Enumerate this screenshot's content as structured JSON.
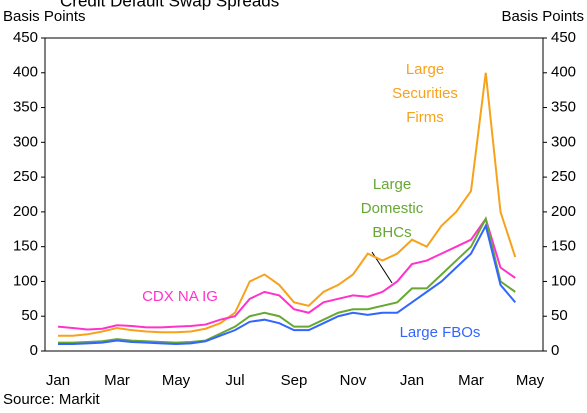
{
  "chart_data": {
    "type": "line",
    "title": "Credit Default Swap Spreads",
    "y_label": "Basis Points",
    "y2_label": "Basis Points",
    "source": "Source: Markit",
    "categories": [
      "Jan",
      null,
      null,
      null,
      "Mar",
      null,
      null,
      null,
      "May",
      null,
      null,
      null,
      "Jul",
      null,
      null,
      null,
      "Sep",
      null,
      null,
      null,
      "Nov",
      null,
      null,
      null,
      "Jan",
      null,
      null,
      null,
      "Mar",
      null,
      null,
      null,
      "May"
    ],
    "series": [
      {
        "name": "Large Securities Firms",
        "color": "#f7a21b",
        "values": [
          22,
          22,
          24,
          28,
          33,
          30,
          28,
          27,
          27,
          28,
          32,
          40,
          55,
          100,
          110,
          95,
          70,
          65,
          85,
          95,
          110,
          140,
          130,
          140,
          160,
          150,
          180,
          200,
          230,
          400,
          200,
          135,
          null
        ]
      },
      {
        "name": "CDX NA IG",
        "color": "#ff33cc",
        "values": [
          35,
          33,
          31,
          32,
          37,
          36,
          34,
          34,
          35,
          36,
          38,
          45,
          50,
          75,
          85,
          80,
          60,
          55,
          70,
          75,
          80,
          78,
          85,
          100,
          125,
          130,
          140,
          150,
          160,
          190,
          120,
          105,
          null
        ]
      },
      {
        "name": "Large Domestic BHCs",
        "color": "#66a832",
        "values": [
          12,
          12,
          13,
          14,
          17,
          15,
          14,
          13,
          12,
          13,
          15,
          25,
          35,
          50,
          55,
          50,
          35,
          35,
          45,
          55,
          60,
          60,
          65,
          70,
          90,
          90,
          110,
          130,
          150,
          190,
          100,
          85,
          null
        ]
      },
      {
        "name": "Large FBOs",
        "color": "#3366ff",
        "values": [
          10,
          10,
          11,
          12,
          15,
          13,
          12,
          11,
          10,
          11,
          14,
          22,
          30,
          42,
          45,
          40,
          30,
          30,
          40,
          50,
          55,
          52,
          55,
          55,
          70,
          85,
          100,
          120,
          140,
          180,
          95,
          70,
          null
        ]
      }
    ],
    "annotations": [
      {
        "lines": [
          "Large",
          "Securities",
          "Firms"
        ],
        "color": "#f7a21b"
      },
      {
        "lines": [
          "Large",
          "Domestic",
          "BHCs"
        ],
        "color": "#66a832"
      },
      {
        "lines": [
          "CDX NA IG"
        ],
        "color": "#ff33cc"
      },
      {
        "lines": [
          "Large FBOs"
        ],
        "color": "#3366ff"
      }
    ],
    "ylim": [
      0,
      450
    ],
    "yticks": [
      0,
      50,
      100,
      150,
      200,
      250,
      300,
      350,
      400,
      450
    ],
    "y2lim": [
      0,
      450
    ],
    "y2ticks": [
      0,
      50,
      100,
      150,
      200,
      250,
      300,
      350,
      400,
      450
    ]
  }
}
